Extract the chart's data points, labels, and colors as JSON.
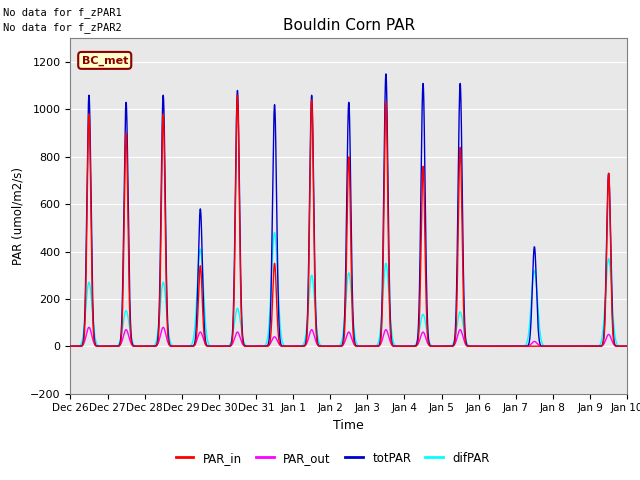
{
  "title": "Bouldin Corn PAR",
  "xlabel": "Time",
  "ylabel": "PAR (umol/m2/s)",
  "ylim": [
    -200,
    1300
  ],
  "yticks": [
    -200,
    0,
    200,
    400,
    600,
    800,
    1000,
    1200
  ],
  "background_color": "#ffffff",
  "plot_bg_color": "#e8e8e8",
  "no_data_text1": "No data for f_zPAR1",
  "no_data_text2": "No data for f_zPAR2",
  "legend_label": "BC_met",
  "legend_facecolor": "#ffffcc",
  "legend_edgecolor": "#8b0000",
  "series": {
    "PAR_in": {
      "color": "#ff0000",
      "lw": 1.0
    },
    "PAR_out": {
      "color": "#ff00ff",
      "lw": 1.0
    },
    "totPAR": {
      "color": "#0000cc",
      "lw": 1.0
    },
    "difPAR": {
      "color": "#00ffff",
      "lw": 1.0
    }
  },
  "xticklabels": [
    "Dec 26",
    "Dec 27",
    "Dec 28",
    "Dec 29",
    "Dec 30",
    "Dec 31",
    "Jan 1",
    "Jan 2",
    "Jan 3",
    "Jan 4",
    "Jan 5",
    "Jan 6",
    "Jan 7",
    "Jan 8",
    "Jan 9",
    "Jan 10"
  ],
  "peaks_tot": [
    1060,
    1030,
    1060,
    580,
    1080,
    1020,
    1060,
    1030,
    1150,
    1110,
    1110,
    0,
    420,
    0,
    730
  ],
  "peaks_in": [
    980,
    900,
    980,
    340,
    1060,
    350,
    1040,
    800,
    1030,
    760,
    840,
    0,
    0,
    0,
    730
  ],
  "peaks_out": [
    80,
    70,
    80,
    60,
    60,
    40,
    70,
    60,
    70,
    60,
    70,
    0,
    20,
    0,
    50
  ],
  "peaks_dif": [
    270,
    150,
    270,
    410,
    160,
    480,
    300,
    310,
    350,
    135,
    145,
    0,
    320,
    0,
    370
  ]
}
